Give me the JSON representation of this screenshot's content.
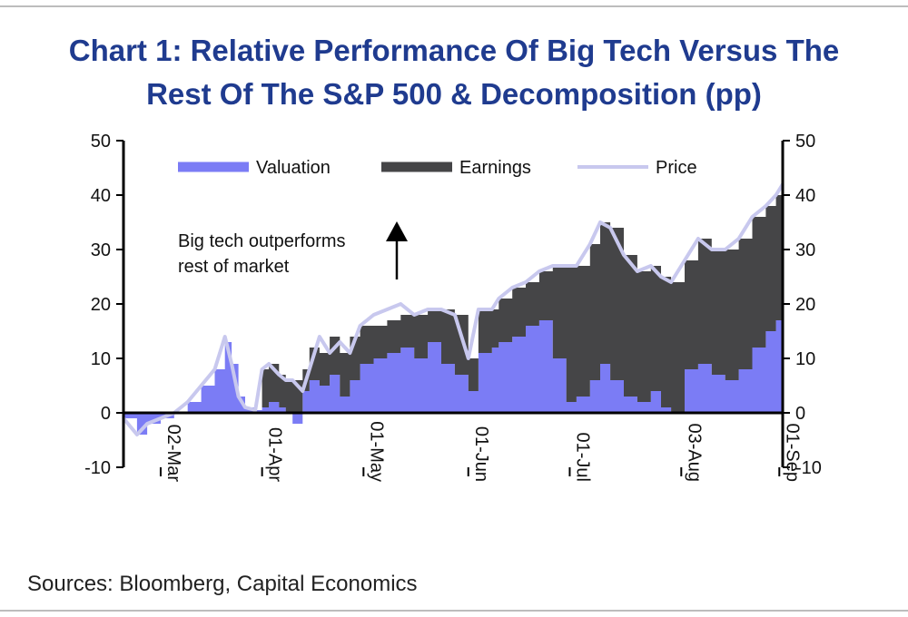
{
  "title_line1": "Chart 1: Relative Performance Of Big Tech Versus The",
  "title_line2": "Rest Of The S&P 500 & Decomposition (pp)",
  "source": "Sources: Bloomberg, Capital Economics",
  "colors": {
    "valuation": "#7b7cf5",
    "earnings": "#454547",
    "price": "#c8c8ee",
    "title": "#1f3b8f"
  },
  "chart_data": {
    "type": "area",
    "title": "Chart 1: Relative Performance Of Big Tech Versus The Rest Of The S&P 500 & Decomposition (pp)",
    "ylim": [
      -10,
      50
    ],
    "yticks": [
      -10,
      0,
      10,
      20,
      30,
      40,
      50
    ],
    "xlim": [
      "2020-02-20",
      "2020-09-02"
    ],
    "xticks": [
      {
        "date": "2020-03-02",
        "label": "02-Mar"
      },
      {
        "date": "2020-04-01",
        "label": "01-Apr"
      },
      {
        "date": "2020-05-01",
        "label": "01-May"
      },
      {
        "date": "2020-06-01",
        "label": "01-Jun"
      },
      {
        "date": "2020-07-01",
        "label": "01-Jul"
      },
      {
        "date": "2020-08-03",
        "label": "03-Aug"
      },
      {
        "date": "2020-09-01",
        "label": "01-Sep"
      }
    ],
    "legend_position": "top",
    "annotation": [
      "Big tech outperforms",
      "rest of market"
    ],
    "x": [
      "2020-02-20",
      "2020-02-24",
      "2020-02-27",
      "2020-03-02",
      "2020-03-06",
      "2020-03-10",
      "2020-03-14",
      "2020-03-18",
      "2020-03-21",
      "2020-03-23",
      "2020-03-25",
      "2020-03-27",
      "2020-03-30",
      "2020-04-01",
      "2020-04-03",
      "2020-04-06",
      "2020-04-08",
      "2020-04-10",
      "2020-04-13",
      "2020-04-15",
      "2020-04-18",
      "2020-04-21",
      "2020-04-24",
      "2020-04-27",
      "2020-04-30",
      "2020-05-04",
      "2020-05-08",
      "2020-05-12",
      "2020-05-16",
      "2020-05-20",
      "2020-05-24",
      "2020-05-28",
      "2020-06-01",
      "2020-06-04",
      "2020-06-08",
      "2020-06-10",
      "2020-06-14",
      "2020-06-18",
      "2020-06-22",
      "2020-06-26",
      "2020-06-30",
      "2020-07-03",
      "2020-07-07",
      "2020-07-10",
      "2020-07-13",
      "2020-07-17",
      "2020-07-21",
      "2020-07-25",
      "2020-07-28",
      "2020-07-31",
      "2020-08-04",
      "2020-08-08",
      "2020-08-12",
      "2020-08-16",
      "2020-08-20",
      "2020-08-24",
      "2020-08-28",
      "2020-08-31",
      "2020-09-02"
    ],
    "series": [
      {
        "name": "Valuation",
        "values": [
          -1,
          -4,
          -2,
          -1,
          0,
          2,
          5,
          8,
          13,
          9,
          3,
          1,
          0.5,
          1,
          2,
          1,
          0,
          -2,
          4,
          6,
          5,
          7,
          3,
          6,
          9,
          10,
          11,
          12,
          10,
          13,
          9,
          7,
          4,
          11,
          12,
          13,
          14,
          16,
          17,
          10,
          2,
          3,
          6,
          9,
          6,
          3,
          2,
          4,
          1,
          0,
          8,
          9,
          7,
          6,
          8,
          12,
          15,
          17,
          18
        ]
      },
      {
        "name": "Earnings",
        "values": [
          0,
          0,
          0,
          0,
          0,
          0,
          0,
          0,
          0,
          0,
          0,
          0,
          0,
          7,
          7,
          6,
          6,
          6,
          4,
          6,
          6,
          7,
          8,
          8,
          7,
          6,
          6,
          6,
          8,
          6,
          10,
          11,
          6,
          8,
          7,
          8,
          9,
          8,
          9,
          17,
          25,
          24,
          25,
          26,
          28,
          26,
          24,
          23,
          24,
          24,
          20,
          23,
          23,
          24,
          24,
          24,
          23,
          23,
          23
        ]
      },
      {
        "name": "Price",
        "values": [
          -1,
          -4,
          -2,
          -1,
          0,
          2,
          5,
          8,
          14,
          9,
          3,
          1,
          0.5,
          8,
          9,
          7,
          6,
          6,
          4,
          8,
          14,
          11,
          13,
          11,
          16,
          18,
          19,
          20,
          18,
          19,
          19,
          18,
          10,
          19,
          19,
          21,
          23,
          24,
          26,
          27,
          27,
          27,
          31,
          35,
          34,
          29,
          26,
          27,
          25,
          24,
          28,
          32,
          30,
          30,
          32,
          36,
          38,
          40,
          42
        ]
      }
    ]
  }
}
